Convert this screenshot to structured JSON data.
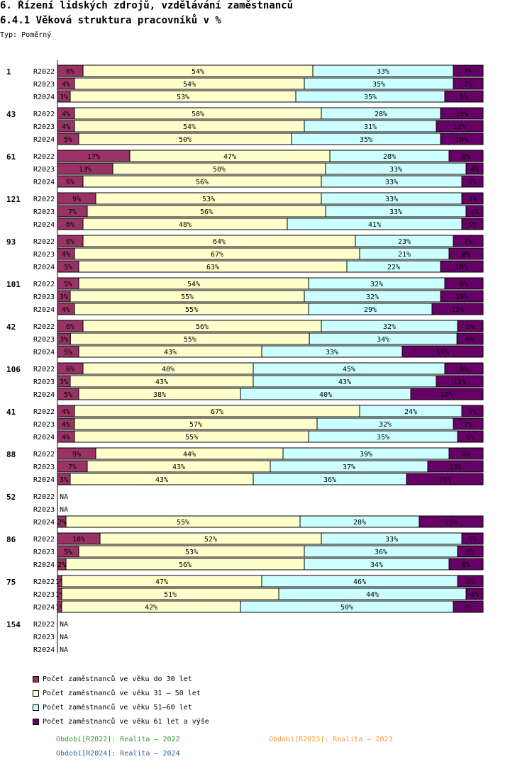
{
  "header": {
    "title": "6. Řízení lidských zdrojů, vzdělávání zaměstnanců",
    "subtitle": "6.4.1 Věková struktura pracovníků v %",
    "type_label": "Typ: Poměrný"
  },
  "colors": {
    "s1": "#993366",
    "s2": "#ffffcc",
    "s3": "#ccffff",
    "s4": "#660066",
    "p1": "#339933",
    "p2": "#ff9933",
    "p3": "#336699"
  },
  "chart_data": {
    "type": "bar",
    "orientation": "horizontal-stacked-100",
    "series_names": [
      "Počet zaměstnanců ve věku do 30 let",
      "Počet zaměstnanců ve věku 31 – 50 let",
      "Počet zaměstnanců ve věku 51–60 let",
      "Počet zaměstnanců ve věku 61 let a výše"
    ],
    "groups": [
      {
        "label": "1",
        "rows": [
          {
            "period": "R2022",
            "values": [
              6,
              54,
              33,
              7
            ]
          },
          {
            "period": "R2023",
            "values": [
              4,
              54,
              35,
              7
            ]
          },
          {
            "period": "R2024",
            "values": [
              3,
              53,
              35,
              9
            ]
          }
        ]
      },
      {
        "label": "43",
        "rows": [
          {
            "period": "R2022",
            "values": [
              4,
              58,
              28,
              10
            ]
          },
          {
            "period": "R2023",
            "values": [
              4,
              54,
              31,
              11
            ]
          },
          {
            "period": "R2024",
            "values": [
              5,
              50,
              35,
              10
            ]
          }
        ]
      },
      {
        "label": "61",
        "rows": [
          {
            "period": "R2022",
            "values": [
              17,
              47,
              28,
              8
            ]
          },
          {
            "period": "R2023",
            "values": [
              13,
              50,
              33,
              4
            ]
          },
          {
            "period": "R2024",
            "values": [
              6,
              56,
              33,
              5
            ]
          }
        ]
      },
      {
        "label": "121",
        "rows": [
          {
            "period": "R2022",
            "values": [
              9,
              53,
              33,
              5
            ]
          },
          {
            "period": "R2023",
            "values": [
              7,
              56,
              33,
              4
            ]
          },
          {
            "period": "R2024",
            "values": [
              6,
              48,
              41,
              5
            ]
          }
        ]
      },
      {
        "label": "93",
        "rows": [
          {
            "period": "R2022",
            "values": [
              6,
              64,
              23,
              7
            ]
          },
          {
            "period": "R2023",
            "values": [
              4,
              67,
              21,
              8
            ]
          },
          {
            "period": "R2024",
            "values": [
              5,
              63,
              22,
              10
            ]
          }
        ]
      },
      {
        "label": "101",
        "rows": [
          {
            "period": "R2022",
            "values": [
              5,
              54,
              32,
              9
            ]
          },
          {
            "period": "R2023",
            "values": [
              3,
              55,
              32,
              10
            ]
          },
          {
            "period": "R2024",
            "values": [
              4,
              55,
              29,
              12
            ]
          }
        ]
      },
      {
        "label": "42",
        "rows": [
          {
            "period": "R2022",
            "values": [
              6,
              56,
              32,
              6
            ]
          },
          {
            "period": "R2023",
            "values": [
              3,
              55,
              34,
              6
            ]
          },
          {
            "period": "R2024",
            "values": [
              5,
              43,
              33,
              19
            ]
          }
        ]
      },
      {
        "label": "106",
        "rows": [
          {
            "period": "R2022",
            "values": [
              6,
              40,
              45,
              9
            ]
          },
          {
            "period": "R2023",
            "values": [
              3,
              43,
              43,
              11
            ]
          },
          {
            "period": "R2024",
            "values": [
              5,
              38,
              40,
              17
            ]
          }
        ]
      },
      {
        "label": "41",
        "rows": [
          {
            "period": "R2022",
            "values": [
              4,
              67,
              24,
              5
            ]
          },
          {
            "period": "R2023",
            "values": [
              4,
              57,
              32,
              7
            ]
          },
          {
            "period": "R2024",
            "values": [
              4,
              55,
              35,
              6
            ]
          }
        ]
      },
      {
        "label": "88",
        "rows": [
          {
            "period": "R2022",
            "values": [
              9,
              44,
              39,
              8
            ]
          },
          {
            "period": "R2023",
            "values": [
              7,
              43,
              37,
              13
            ]
          },
          {
            "period": "R2024",
            "values": [
              3,
              43,
              36,
              18
            ]
          }
        ]
      },
      {
        "label": "52",
        "rows": [
          {
            "period": "R2022",
            "values": null,
            "na": "NA"
          },
          {
            "period": "R2023",
            "values": null,
            "na": "NA"
          },
          {
            "period": "R2024",
            "values": [
              2,
              55,
              28,
              15
            ]
          }
        ]
      },
      {
        "label": "86",
        "rows": [
          {
            "period": "R2022",
            "values": [
              10,
              52,
              33,
              5
            ]
          },
          {
            "period": "R2023",
            "values": [
              5,
              53,
              36,
              6
            ]
          },
          {
            "period": "R2024",
            "values": [
              2,
              56,
              34,
              8
            ]
          }
        ]
      },
      {
        "label": "75",
        "rows": [
          {
            "period": "R2022",
            "values": [
              1,
              47,
              46,
              6
            ]
          },
          {
            "period": "R2023",
            "values": [
              1,
              51,
              44,
              4
            ]
          },
          {
            "period": "R2024",
            "values": [
              1,
              42,
              50,
              7
            ]
          }
        ]
      },
      {
        "label": "154",
        "rows": [
          {
            "period": "R2022",
            "values": null,
            "na": "NA"
          },
          {
            "period": "R2023",
            "values": null,
            "na": "NA"
          },
          {
            "period": "R2024",
            "values": null,
            "na": "NA"
          }
        ]
      }
    ]
  },
  "legend": {
    "items": [
      "Počet zaměstnanců ve věku do 30 let",
      "Počet zaměstnanců ve věku 31 – 50 let",
      "Počet zaměstnanců ve věku 51–60 let",
      "Počet zaměstnanců ve věku 61 let a výše"
    ],
    "periods": [
      "Období[R2022]: Realita – 2022",
      "Období[R2023]: Realita – 2023",
      "Období[R2024]: Realita – 2024"
    ]
  }
}
